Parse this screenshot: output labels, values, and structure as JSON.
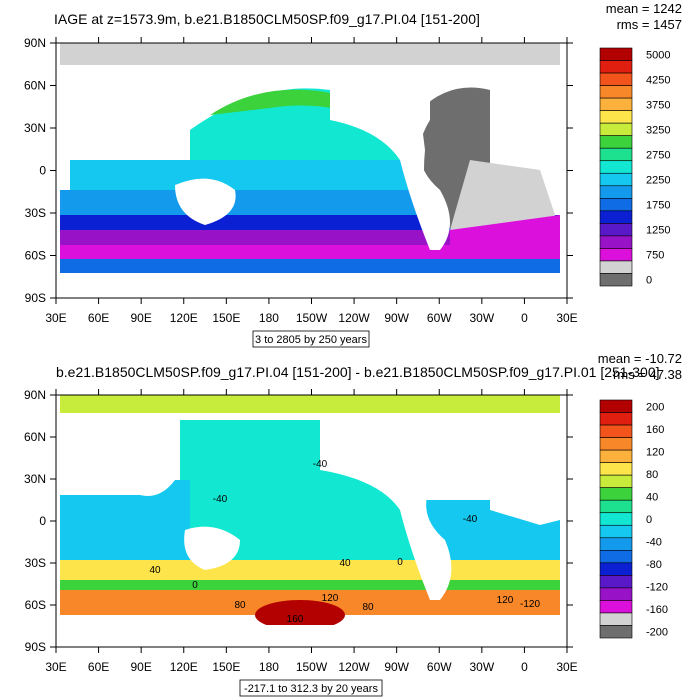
{
  "chart_data": [
    {
      "type": "heatmap",
      "title": "IAGE at z=1573.9m, b.e21.B1850CLM50SP.f09_g17.PI.04 [151-200]",
      "stats": {
        "mean": "mean = 1242",
        "rms": "rms = 1457"
      },
      "xticks": [
        "30E",
        "60E",
        "90E",
        "120E",
        "150E",
        "180",
        "150W",
        "120W",
        "90W",
        "60W",
        "30W",
        "0",
        "30E"
      ],
      "yticks": [
        "90N",
        "60N",
        "30N",
        "0",
        "30S",
        "60S",
        "90S"
      ],
      "xlim": [
        30,
        390
      ],
      "ylim": [
        -90,
        90
      ],
      "colorbar": {
        "labels": [
          "5000",
          "4250",
          "3750",
          "3250",
          "2750",
          "2250",
          "1750",
          "1250",
          "750",
          "0"
        ],
        "colors": [
          "#b30000",
          "#e01f10",
          "#f2541c",
          "#f8872a",
          "#fbb13c",
          "#fde44a",
          "#c8ec3c",
          "#3cd23c",
          "#1de18e",
          "#12e7d2",
          "#14c8f0",
          "#149aec",
          "#106ce4",
          "#0a20d2",
          "#5a19c8",
          "#9812c8",
          "#dc10dc",
          "#d2d2d2",
          "#6e6e6e"
        ]
      },
      "contour_info": "3 to 2805 by 250 years"
    },
    {
      "type": "heatmap",
      "title": "b.e21.B1850CLM50SP.f09_g17.PI.04 [151-200] - b.e21.B1850CLM50SP.f09_g17.PI.01 [251-300]",
      "stats": {
        "mean": "mean = -10.72",
        "rms": "rms = 47.38"
      },
      "xticks": [
        "30E",
        "60E",
        "90E",
        "120E",
        "150E",
        "180",
        "150W",
        "120W",
        "90W",
        "60W",
        "30W",
        "0",
        "30E"
      ],
      "yticks": [
        "90N",
        "60N",
        "30N",
        "0",
        "30S",
        "60S",
        "90S"
      ],
      "xlim": [
        30,
        390
      ],
      "ylim": [
        -90,
        90
      ],
      "colorbar": {
        "labels": [
          "200",
          "160",
          "120",
          "80",
          "40",
          "0",
          "-40",
          "-80",
          "-120",
          "-160",
          "-200"
        ],
        "colors": [
          "#b30000",
          "#e01f10",
          "#f2541c",
          "#f8872a",
          "#fbb13c",
          "#fde44a",
          "#c8ec3c",
          "#3cd23c",
          "#1de18e",
          "#12e7d2",
          "#14c8f0",
          "#149aec",
          "#106ce4",
          "#0a20d2",
          "#5a19c8",
          "#9812c8",
          "#dc10dc",
          "#d2d2d2",
          "#6e6e6e"
        ]
      },
      "contour_labels": [
        "-40",
        "-40",
        "40",
        "40",
        "0",
        "0",
        "80",
        "-120",
        "160",
        "120",
        "80",
        "120",
        "-40"
      ],
      "contour_info": "-217.1 to 312.3 by 20 years"
    }
  ]
}
